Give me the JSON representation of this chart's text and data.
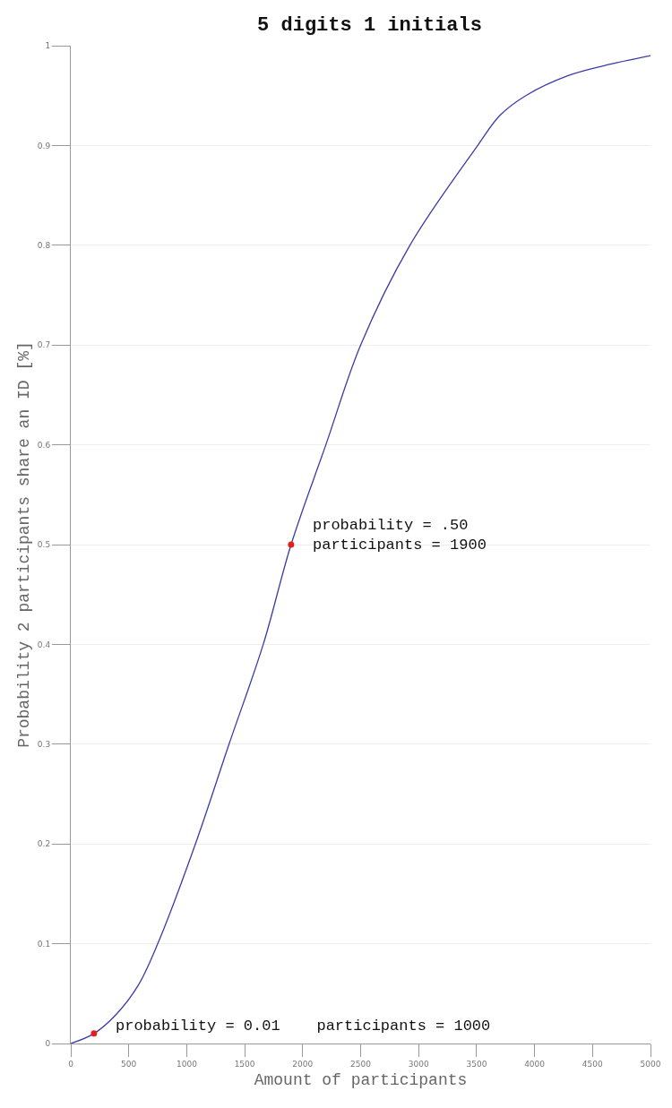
{
  "chart_data": {
    "type": "line",
    "title": "5 digits 1 initials",
    "xlabel": "Amount of participants",
    "ylabel": "Probability 2 participants share an ID [%]",
    "x": [
      0,
      200,
      390,
      580,
      750,
      1075,
      1365,
      1660,
      1900,
      2200,
      2500,
      2925,
      3510,
      3700,
      3925,
      4290,
      4600,
      5000
    ],
    "series": [
      {
        "color": "#3b3ba6",
        "values": [
          0,
          0.01,
          0.029,
          0.058,
          0.1,
          0.2,
          0.3,
          0.4,
          0.5,
          0.6,
          0.7,
          0.8,
          0.9,
          0.93,
          0.95,
          0.97,
          0.98,
          0.99
        ]
      },
      {
        "type": "scatter",
        "color": "#e02020",
        "marker": "circle",
        "x": [
          200,
          1900
        ],
        "values": [
          0.01,
          0.5
        ]
      }
    ],
    "annotations": [
      {
        "text": "probability = 0.01    participants = 1000",
        "x": 200,
        "y": 0.01
      },
      {
        "text": "probability = .50\nparticipants = 1900",
        "x": 1900,
        "y": 0.5
      }
    ],
    "xlim": [
      0,
      5000
    ],
    "xticks": [
      0,
      500,
      1000,
      1500,
      2000,
      2500,
      3000,
      3500,
      4000,
      4500,
      5000
    ],
    "ylim": [
      0,
      1
    ],
    "yticks": [
      0,
      0.1,
      0.2,
      0.3,
      0.4,
      0.5,
      0.6,
      0.7,
      0.8,
      0.9,
      1
    ],
    "grid": "y"
  }
}
